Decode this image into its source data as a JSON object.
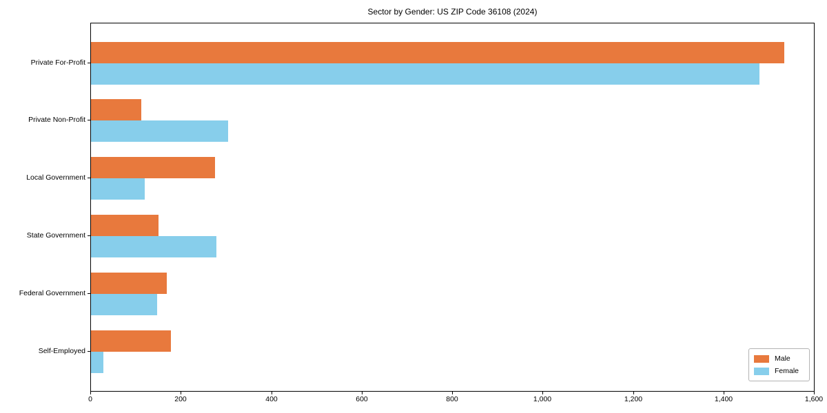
{
  "title": "Sector by Gender: US ZIP Code 36108 (2024)",
  "colors": {
    "male": "#e8793d",
    "female": "#87ceeb",
    "axis": "#000000",
    "legend_border": "#b3b3b3",
    "background": "#ffffff"
  },
  "legend": {
    "position": "lower right",
    "entries": [
      {
        "label": "Male",
        "color": "#e8793d"
      },
      {
        "label": "Female",
        "color": "#87ceeb"
      }
    ]
  },
  "chart_data": {
    "type": "bar",
    "orientation": "horizontal",
    "title": "Sector by Gender: US ZIP Code 36108 (2024)",
    "xlabel": "",
    "ylabel": "",
    "grid": false,
    "categories": [
      "Private For-Profit",
      "Private Non-Profit",
      "Local Government",
      "State Government",
      "Federal Government",
      "Self-Employed"
    ],
    "series": [
      {
        "name": "Male",
        "color": "#e8793d",
        "values": [
          1535,
          112,
          275,
          150,
          168,
          177
        ]
      },
      {
        "name": "Female",
        "color": "#87ceeb",
        "values": [
          1480,
          304,
          119,
          277,
          147,
          27
        ]
      }
    ],
    "xlim": [
      0,
      1600
    ],
    "xticks": [
      0,
      200,
      400,
      600,
      800,
      1000,
      1200,
      1400,
      1600
    ],
    "xtick_labels": [
      "0",
      "200",
      "400",
      "600",
      "800",
      "1,000",
      "1,200",
      "1,400",
      "1,600"
    ],
    "legend_position": "lower right"
  }
}
